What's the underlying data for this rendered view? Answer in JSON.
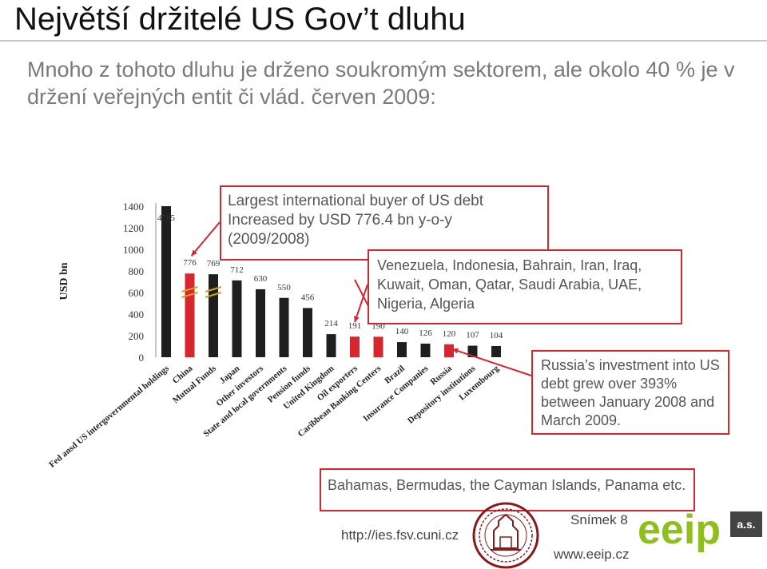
{
  "slide": {
    "title": "Největší držitelé US Gov’t dluhu",
    "subtitle": "Mnoho z tohoto dluhu je drženo soukromým sektorem, ale okolo 40 % je v držení veřejných entit či vlád. červen 2009:",
    "box_largest_line1": "Largest international buyer of US debt",
    "box_largest_line2": "Increased by USD 776.4 bn y-o-y",
    "box_largest_line3": "(2009/2008)",
    "box_oil": "Venezuela, Indonesia, Bahrain, Iran, Iraq, Kuwait, Oman, Qatar, Saudi Arabia, UAE, Nigeria, Algeria",
    "box_russia": "Russia’s investment into US debt grew over 393% between January 2008 and March 2009.",
    "box_caribbean": "Bahamas, Bermudas, the Cayman Islands, Panama etc.",
    "url_ies": "http://ies.fsv.cuni.cz",
    "slide_number": "Snímek 8",
    "url_eeip": "www.eeip.cz",
    "logo_text": "eeip",
    "logo_suffix": "a.s."
  },
  "colors": {
    "dark_bar": "#1f1f1f",
    "red_bar": "#d62630",
    "box_border": "#d62630",
    "logo_green": "#8fbf1f",
    "seal_red": "#8a1a1a"
  },
  "chart_data": {
    "type": "bar",
    "ylabel": "USD bn",
    "ylim": [
      0,
      1400
    ],
    "yticks": [
      0,
      200,
      400,
      600,
      800,
      1000,
      1200,
      1400
    ],
    "categories": [
      "Fed ansd US intergovernmental holdings",
      "China",
      "Mutual Funds",
      "Japan",
      "Other investors",
      "State and local governments",
      "Pension funds",
      "United Kingdom",
      "Oil exporters",
      "Caribbean Banking Centers",
      "Brazil",
      "Insurance Companies",
      "Russia",
      "Depository institutions",
      "Luxembourg"
    ],
    "values": [
      4785,
      776,
      769,
      712,
      630,
      550,
      456,
      214,
      191,
      190,
      140,
      126,
      120,
      107,
      104
    ],
    "labels": [
      "4785",
      "776",
      "769",
      "712",
      "630",
      "550",
      "456",
      "214",
      "191",
      "190",
      "140",
      "126",
      "120",
      "107",
      "104"
    ],
    "highlighted": [
      "China",
      "Oil exporters",
      "Caribbean Banking Centers",
      "Russia"
    ],
    "truncated": [
      "Fed ansd US intergovernmental holdings"
    ],
    "axis_break": [
      "China",
      "Mutual Funds"
    ]
  }
}
